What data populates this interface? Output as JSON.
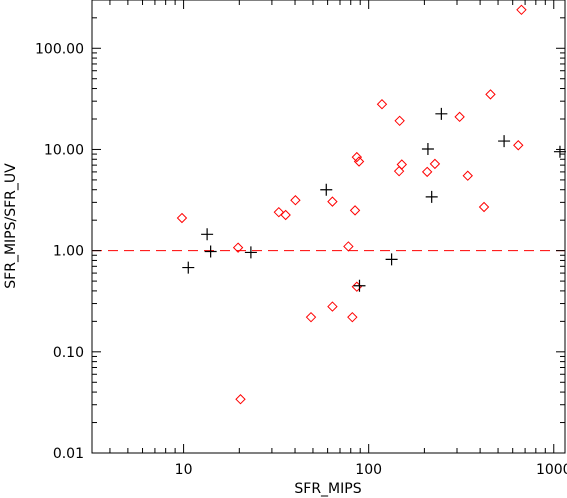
{
  "chart_data": {
    "type": "scatter",
    "xlabel": "SFR_MIPS",
    "ylabel": "SFR_MIPS/SFR_UV",
    "xscale": "log",
    "yscale": "log",
    "xlim": [
      3.2,
      1150
    ],
    "ylim": [
      0.01,
      300
    ],
    "xticks": [
      10,
      100,
      1000
    ],
    "xtick_labels": [
      "10",
      "100",
      "1000"
    ],
    "yticks": [
      0.01,
      0.1,
      1,
      10,
      100
    ],
    "ytick_labels": [
      "0.01",
      "0.10",
      "1.00",
      "10.00",
      "100.00"
    ],
    "reference_line": {
      "y": 1.0,
      "style": "dashed",
      "color": "#ff0000"
    },
    "grid": false,
    "series": [
      {
        "marker": "diamond",
        "color": "#ff0000",
        "points": [
          {
            "x": 9.8,
            "y": 2.1
          },
          {
            "x": 19.7,
            "y": 1.07
          },
          {
            "x": 20.3,
            "y": 0.034
          },
          {
            "x": 32.7,
            "y": 2.4
          },
          {
            "x": 35.6,
            "y": 2.25
          },
          {
            "x": 40.2,
            "y": 3.15
          },
          {
            "x": 48.8,
            "y": 0.22
          },
          {
            "x": 63.7,
            "y": 0.28
          },
          {
            "x": 63.7,
            "y": 3.05
          },
          {
            "x": 77.7,
            "y": 1.1
          },
          {
            "x": 81.6,
            "y": 0.22
          },
          {
            "x": 84.4,
            "y": 2.5
          },
          {
            "x": 86.3,
            "y": 0.44
          },
          {
            "x": 86.3,
            "y": 8.4
          },
          {
            "x": 88.7,
            "y": 7.6
          },
          {
            "x": 118,
            "y": 28
          },
          {
            "x": 146,
            "y": 6.1
          },
          {
            "x": 147,
            "y": 19.2
          },
          {
            "x": 151,
            "y": 7.1
          },
          {
            "x": 207,
            "y": 6.0
          },
          {
            "x": 228,
            "y": 7.2
          },
          {
            "x": 310,
            "y": 21
          },
          {
            "x": 343,
            "y": 5.5
          },
          {
            "x": 420,
            "y": 2.7
          },
          {
            "x": 455,
            "y": 35
          },
          {
            "x": 643,
            "y": 11
          },
          {
            "x": 669,
            "y": 240
          }
        ]
      },
      {
        "marker": "plus",
        "color": "#000000",
        "points": [
          {
            "x": 10.6,
            "y": 0.68
          },
          {
            "x": 13.4,
            "y": 1.45
          },
          {
            "x": 14.0,
            "y": 0.98
          },
          {
            "x": 23.1,
            "y": 0.96
          },
          {
            "x": 59.0,
            "y": 4.0
          },
          {
            "x": 89.2,
            "y": 0.45
          },
          {
            "x": 133,
            "y": 0.82
          },
          {
            "x": 209,
            "y": 10.1
          },
          {
            "x": 219,
            "y": 3.4
          },
          {
            "x": 247,
            "y": 22.5
          },
          {
            "x": 539,
            "y": 12.1
          },
          {
            "x": 1080,
            "y": 9.5
          }
        ]
      }
    ]
  }
}
